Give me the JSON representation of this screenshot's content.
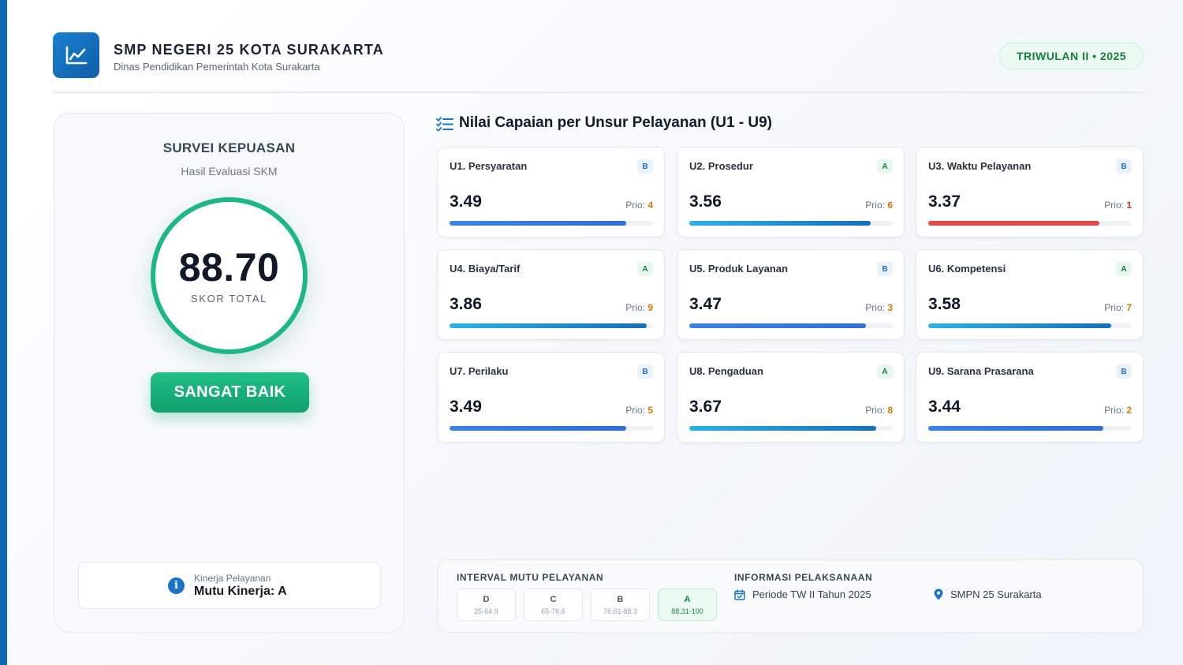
{
  "header": {
    "title": "SMP NEGERI 25 KOTA SURAKARTA",
    "subtitle": "Dinas Pendidikan Pemerintah Kota Surakarta",
    "period_badge": "TRIWULAN II • 2025",
    "logo_icon": "line-chart-icon"
  },
  "summary": {
    "title": "SURVEI KEPUASAN",
    "subtitle": "Hasil Evaluasi SKM",
    "score": "88.70",
    "score_label": "SKOR TOTAL",
    "grade_label": "SANGAT BAIK",
    "performance_label": "Kinerja Pelayanan",
    "performance_value": "Mutu Kinerja: A",
    "info_icon": "info-icon"
  },
  "section": {
    "title": "Nilai Capaian per Unsur Pelayanan (U1 - U9)",
    "icon": "checklist-icon"
  },
  "prio_label": "Prio:",
  "units": [
    {
      "name": "U1. Persyaratan",
      "grade": "B",
      "value": "3.49",
      "prio": "4",
      "fill": 0.87,
      "bar": "blue"
    },
    {
      "name": "U2. Prosedur",
      "grade": "A",
      "value": "3.56",
      "prio": "6",
      "fill": 0.89,
      "bar": "teal"
    },
    {
      "name": "U3. Waktu Pelayanan",
      "grade": "B",
      "value": "3.37",
      "prio": "1",
      "fill": 0.84,
      "bar": "red"
    },
    {
      "name": "U4. Biaya/Tarif",
      "grade": "A",
      "value": "3.86",
      "prio": "9",
      "fill": 0.97,
      "bar": "teal"
    },
    {
      "name": "U5. Produk Layanan",
      "grade": "B",
      "value": "3.47",
      "prio": "3",
      "fill": 0.87,
      "bar": "blue"
    },
    {
      "name": "U6. Kompetensi",
      "grade": "A",
      "value": "3.58",
      "prio": "7",
      "fill": 0.9,
      "bar": "teal"
    },
    {
      "name": "U7. Perilaku",
      "grade": "B",
      "value": "3.49",
      "prio": "5",
      "fill": 0.87,
      "bar": "blue"
    },
    {
      "name": "U8. Pengaduan",
      "grade": "A",
      "value": "3.67",
      "prio": "8",
      "fill": 0.92,
      "bar": "teal"
    },
    {
      "name": "U9. Sarana Prasarana",
      "grade": "B",
      "value": "3.44",
      "prio": "2",
      "fill": 0.86,
      "bar": "blue"
    }
  ],
  "interval": {
    "title": "INTERVAL MUTU PELAYANAN",
    "items": [
      {
        "letter": "D",
        "range": "25-64.9"
      },
      {
        "letter": "C",
        "range": "65-76.6"
      },
      {
        "letter": "B",
        "range": "76.61-88.3"
      },
      {
        "letter": "A",
        "range": "88.31-100"
      }
    ],
    "active": "A"
  },
  "implementation": {
    "title": "INFORMASI PELAKSANAAN",
    "period": "Periode TW II Tahun 2025",
    "location": "SMPN 25 Surakarta",
    "period_icon": "calendar-check-icon",
    "location_icon": "map-pin-icon"
  },
  "colors": {
    "accent_blue": "#1068b4",
    "success_green": "#1db786",
    "warning_orange": "#d97706",
    "danger_red": "#e04a4a"
  }
}
